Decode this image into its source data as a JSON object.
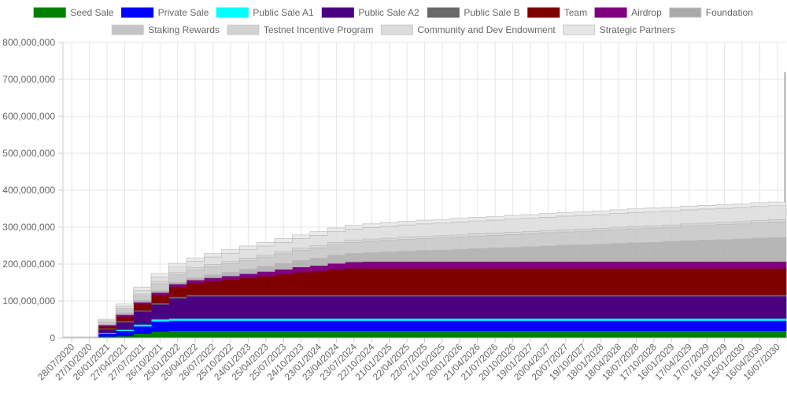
{
  "chart_data": {
    "type": "area",
    "stacked": true,
    "step": true,
    "xlabel": "",
    "ylabel": "",
    "ylim": [
      0,
      800000000
    ],
    "y_ticks": [
      "0",
      "100,000,000",
      "200,000,000",
      "300,000,000",
      "400,000,000",
      "500,000,000",
      "600,000,000",
      "700,000,000",
      "800,000,000"
    ],
    "grid": true,
    "legend_position": "top",
    "x_ticks": [
      "28/07/2020",
      "27/10/2020",
      "26/01/2021",
      "27/04/2021",
      "27/07/2021",
      "26/10/2021",
      "25/01/2022",
      "26/04/2022",
      "26/07/2022",
      "25/10/2022",
      "24/01/2023",
      "25/04/2023",
      "25/07/2023",
      "24/10/2023",
      "23/01/2024",
      "23/04/2024",
      "23/07/2024",
      "22/10/2024",
      "21/01/2025",
      "22/04/2025",
      "22/07/2025",
      "21/10/2025",
      "20/01/2026",
      "21/04/2026",
      "21/07/2026",
      "20/10/2026",
      "19/01/2027",
      "20/04/2027",
      "20/07/2027",
      "19/10/2027",
      "18/01/2028",
      "18/04/2028",
      "18/07/2028",
      "17/10/2028",
      "16/01/2029",
      "17/04/2029",
      "17/07/2029",
      "16/10/2029",
      "15/01/2030",
      "16/04/2030",
      "16/07/2030"
    ],
    "x_quarter_index": [
      0,
      1,
      2,
      3,
      4,
      5,
      6,
      7,
      8,
      9,
      10,
      11,
      12,
      13,
      14,
      15,
      16,
      17,
      18,
      19,
      20,
      21,
      22,
      23,
      24,
      25,
      26,
      27,
      28,
      29,
      30,
      31,
      32,
      33,
      34,
      35,
      36,
      37,
      38,
      39,
      40
    ],
    "series": [
      {
        "name": "Seed Sale",
        "color": "#008000",
        "values": [
          2000000,
          2000000,
          4000000,
          6000000,
          12000000,
          18000000,
          20000000,
          20000000,
          20000000,
          20000000,
          20000000,
          20000000,
          20000000,
          20000000,
          20000000,
          20000000,
          20000000,
          20000000,
          20000000,
          20000000,
          20000000,
          20000000,
          20000000,
          20000000,
          20000000,
          20000000,
          20000000,
          20000000,
          20000000,
          20000000,
          20000000,
          20000000,
          20000000,
          20000000,
          20000000,
          20000000,
          20000000,
          20000000,
          20000000,
          20000000,
          20000000
        ]
      },
      {
        "name": "Private Sale",
        "color": "#0000ff",
        "values": [
          0,
          0,
          8000000,
          14000000,
          20000000,
          27000000,
          27000000,
          27000000,
          27000000,
          27000000,
          27000000,
          27000000,
          27000000,
          27000000,
          27000000,
          27000000,
          27000000,
          27000000,
          27000000,
          27000000,
          27000000,
          27000000,
          27000000,
          27000000,
          27000000,
          27000000,
          27000000,
          27000000,
          27000000,
          27000000,
          27000000,
          27000000,
          27000000,
          27000000,
          27000000,
          27000000,
          27000000,
          27000000,
          27000000,
          27000000,
          27000000
        ]
      },
      {
        "name": "Public Sale A1",
        "color": "#00ffff",
        "values": [
          0,
          0,
          2000000,
          3000000,
          5000000,
          6000000,
          6000000,
          6000000,
          6000000,
          6000000,
          6000000,
          6000000,
          6000000,
          6000000,
          6000000,
          6000000,
          6000000,
          6000000,
          6000000,
          6000000,
          6000000,
          6000000,
          6000000,
          6000000,
          6000000,
          6000000,
          6000000,
          6000000,
          6000000,
          6000000,
          6000000,
          6000000,
          6000000,
          6000000,
          6000000,
          6000000,
          6000000,
          6000000,
          6000000,
          6000000,
          6000000
        ]
      },
      {
        "name": "Public Sale A2",
        "color": "#4b0082",
        "values": [
          0,
          0,
          10000000,
          20000000,
          35000000,
          40000000,
          55000000,
          60000000,
          60000000,
          60000000,
          60000000,
          60000000,
          60000000,
          60000000,
          60000000,
          60000000,
          60000000,
          60000000,
          60000000,
          60000000,
          60000000,
          60000000,
          60000000,
          60000000,
          60000000,
          60000000,
          60000000,
          60000000,
          60000000,
          60000000,
          60000000,
          60000000,
          60000000,
          60000000,
          60000000,
          60000000,
          60000000,
          60000000,
          60000000,
          60000000,
          60000000
        ]
      },
      {
        "name": "Public Sale B",
        "color": "#696969",
        "values": [
          0,
          0,
          2000000,
          3000000,
          3000000,
          4000000,
          4000000,
          4000000,
          4000000,
          4000000,
          4000000,
          4000000,
          4000000,
          4000000,
          4000000,
          4000000,
          4000000,
          4000000,
          4000000,
          4000000,
          4000000,
          4000000,
          4000000,
          4000000,
          4000000,
          4000000,
          4000000,
          4000000,
          4000000,
          4000000,
          4000000,
          4000000,
          4000000,
          4000000,
          4000000,
          4000000,
          4000000,
          4000000,
          4000000,
          4000000,
          4000000
        ]
      },
      {
        "name": "Team",
        "color": "#800000",
        "values": [
          0,
          0,
          6000000,
          12000000,
          17000000,
          22000000,
          27000000,
          32000000,
          37000000,
          41000000,
          46000000,
          51000000,
          56000000,
          61000000,
          64000000,
          69000000,
          72000000,
          72000000,
          72000000,
          72000000,
          72000000,
          72000000,
          72000000,
          72000000,
          72000000,
          72000000,
          72000000,
          72000000,
          72000000,
          72000000,
          72000000,
          72000000,
          72000000,
          72000000,
          72000000,
          72000000,
          72000000,
          72000000,
          72000000,
          72000000,
          72000000
        ]
      },
      {
        "name": "Airdrop",
        "color": "#800080",
        "values": [
          0,
          0,
          3000000,
          5000000,
          5000000,
          6000000,
          7000000,
          8000000,
          9000000,
          10000000,
          11000000,
          12000000,
          13000000,
          14000000,
          15000000,
          16000000,
          17000000,
          18000000,
          18000000,
          18000000,
          18000000,
          18000000,
          18000000,
          18000000,
          18000000,
          18000000,
          18000000,
          18000000,
          18000000,
          18000000,
          18000000,
          18000000,
          18000000,
          18000000,
          18000000,
          18000000,
          18000000,
          18000000,
          18000000,
          18000000,
          18000000
        ]
      },
      {
        "name": "Foundation",
        "color": "#a9a9a9",
        "values": [
          0,
          0,
          3000000,
          5000000,
          5000000,
          5000000,
          5000000,
          6000000,
          8000000,
          10000000,
          12000000,
          14000000,
          16000000,
          18000000,
          20000000,
          22000000,
          23000000,
          24000000,
          26000000,
          28000000,
          30000000,
          31000000,
          33000000,
          35000000,
          37000000,
          38000000,
          40000000,
          42000000,
          44000000,
          45000000,
          47000000,
          49000000,
          51000000,
          52000000,
          54000000,
          56000000,
          58000000,
          59000000,
          61000000,
          63000000,
          65000000
        ]
      },
      {
        "name": "Staking Rewards",
        "color": "#c4c4c4",
        "values": [
          0,
          0,
          3000000,
          8000000,
          12000000,
          19000000,
          20000000,
          21000000,
          22000000,
          23000000,
          24000000,
          25000000,
          26000000,
          27000000,
          28000000,
          29000000,
          30000000,
          31000000,
          31000000,
          32000000,
          32000000,
          33000000,
          33000000,
          34000000,
          34000000,
          35000000,
          35000000,
          36000000,
          36000000,
          37000000,
          37000000,
          38000000,
          38000000,
          39000000,
          39000000,
          40000000,
          40000000,
          41000000,
          41000000,
          42000000,
          42000000
        ]
      },
      {
        "name": "Testnet Incentive Program",
        "color": "#d2d2d2",
        "values": [
          0,
          0,
          2000000,
          4000000,
          5000000,
          6000000,
          6000000,
          6000000,
          6000000,
          6000000,
          6000000,
          6000000,
          6000000,
          6000000,
          6000000,
          6000000,
          6000000,
          6000000,
          6000000,
          6000000,
          6000000,
          6000000,
          6000000,
          6000000,
          6000000,
          6000000,
          6000000,
          6000000,
          6000000,
          6000000,
          6000000,
          6000000,
          6000000,
          6000000,
          6000000,
          6000000,
          6000000,
          6000000,
          6000000,
          6000000,
          6000000
        ]
      },
      {
        "name": "Community and Dev Endowment",
        "color": "#dcdcdc",
        "values": [
          0,
          0,
          4000000,
          6000000,
          9000000,
          12000000,
          15000000,
          17000000,
          20000000,
          22000000,
          23000000,
          24000000,
          25000000,
          26000000,
          28000000,
          29000000,
          30000000,
          31000000,
          32000000,
          33000000,
          34000000,
          34000000,
          35000000,
          35000000,
          35000000,
          36000000,
          36000000,
          36000000,
          37000000,
          37000000,
          37000000,
          37000000,
          38000000,
          38000000,
          38000000,
          38000000,
          38000000,
          38000000,
          38000000,
          38000000,
          38000000
        ]
      },
      {
        "name": "Strategic Partners",
        "color": "#e6e6e6",
        "values": [
          0,
          0,
          4000000,
          6000000,
          10000000,
          10000000,
          10000000,
          10000000,
          10000000,
          10000000,
          10000000,
          10000000,
          10000000,
          10000000,
          10000000,
          10000000,
          10000000,
          10000000,
          10000000,
          10000000,
          10000000,
          10000000,
          10000000,
          10000000,
          10000000,
          10000000,
          10000000,
          10000000,
          10000000,
          10000000,
          10000000,
          10000000,
          10000000,
          10000000,
          10000000,
          10000000,
          10000000,
          10000000,
          10000000,
          10000000,
          10000000
        ]
      }
    ],
    "final_total_spike": 720000000
  }
}
